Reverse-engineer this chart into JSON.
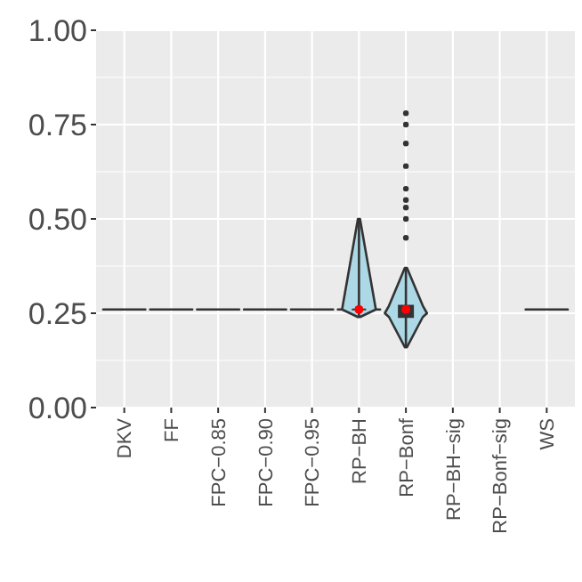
{
  "chart_data": {
    "type": "box",
    "categories": [
      "DKV",
      "FF",
      "FPC−0.85",
      "FPC−0.90",
      "FPC−0.95",
      "RP−BH",
      "RP−Bonf",
      "RP−BH−sig",
      "RP−Bonf−sig",
      "WS"
    ],
    "boxes": [
      {
        "low": 0.26,
        "q1": 0.26,
        "median": 0.26,
        "q3": 0.26,
        "high": 0.26
      },
      {
        "low": 0.26,
        "q1": 0.26,
        "median": 0.26,
        "q3": 0.26,
        "high": 0.26
      },
      {
        "low": 0.26,
        "q1": 0.26,
        "median": 0.26,
        "q3": 0.26,
        "high": 0.26
      },
      {
        "low": 0.26,
        "q1": 0.26,
        "median": 0.26,
        "q3": 0.26,
        "high": 0.26
      },
      {
        "low": 0.26,
        "q1": 0.26,
        "median": 0.26,
        "q3": 0.26,
        "high": 0.26
      },
      {
        "low": 0.24,
        "q1": 0.26,
        "median": 0.26,
        "q3": 0.26,
        "high": 0.5,
        "mean": 0.26
      },
      {
        "low": 0.16,
        "q1": 0.24,
        "median": 0.25,
        "q3": 0.27,
        "high": 0.37,
        "mean": 0.26,
        "outliers": [
          0.45,
          0.5,
          0.53,
          0.55,
          0.58,
          0.64,
          0.7,
          0.75,
          0.78
        ]
      },
      null,
      null,
      {
        "low": 0.26,
        "q1": 0.26,
        "median": 0.26,
        "q3": 0.26,
        "high": 0.26
      }
    ],
    "color": "#333333",
    "ylim": [
      0,
      1
    ],
    "yticks": [
      {
        "value": 0,
        "label": "0.00"
      },
      {
        "value": 0.25,
        "label": "0.25"
      },
      {
        "value": 0.5,
        "label": "0.50"
      },
      {
        "value": 0.75,
        "label": "0.75"
      },
      {
        "value": 1,
        "label": "1.00"
      }
    ],
    "grid": true
  }
}
